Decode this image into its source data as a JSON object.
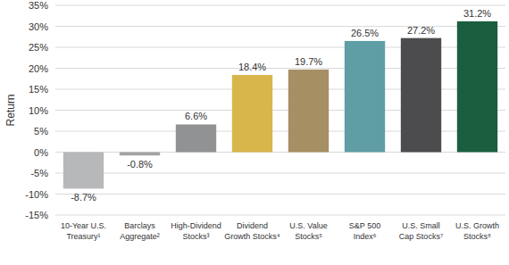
{
  "chart_data": {
    "type": "bar",
    "y_label": "Return",
    "categories": [
      "10-Year U.S.\nTreasury¹",
      "Barclays\nAggregate²",
      "High-Dividend\nStocks³",
      "Dividend\nGrowth Stocks⁴",
      "U.S. Value\nStocks⁵",
      "S&P 500\nIndex⁶",
      "U.S. Small\nCap Stocks⁷",
      "U.S. Growth\nStocks⁸"
    ],
    "values": [
      -8.7,
      -0.8,
      6.6,
      18.4,
      19.7,
      26.5,
      27.2,
      31.2
    ],
    "value_labels": [
      "-8.7%",
      "-0.8%",
      "6.6%",
      "18.4%",
      "19.7%",
      "26.5%",
      "27.2%",
      "31.2%"
    ],
    "colors": [
      "#b7b8ba",
      "#a3a4a6",
      "#919294",
      "#d8b64c",
      "#a58f63",
      "#5e9ea4",
      "#4c4c4e",
      "#1b5e3f"
    ],
    "ylim": [
      -15,
      35
    ],
    "yticks": [
      {
        "value": -15,
        "label": "-15%"
      },
      {
        "value": -10,
        "label": "-10%"
      },
      {
        "value": -5,
        "label": "-5%"
      },
      {
        "value": 0,
        "label": "0%"
      },
      {
        "value": 5,
        "label": "5%"
      },
      {
        "value": 10,
        "label": "10%"
      },
      {
        "value": 15,
        "label": "15%"
      },
      {
        "value": 20,
        "label": "20%"
      },
      {
        "value": 25,
        "label": "25%"
      },
      {
        "value": 30,
        "label": "30%"
      },
      {
        "value": 35,
        "label": "35%"
      }
    ],
    "grid": true,
    "data_labels": true
  }
}
